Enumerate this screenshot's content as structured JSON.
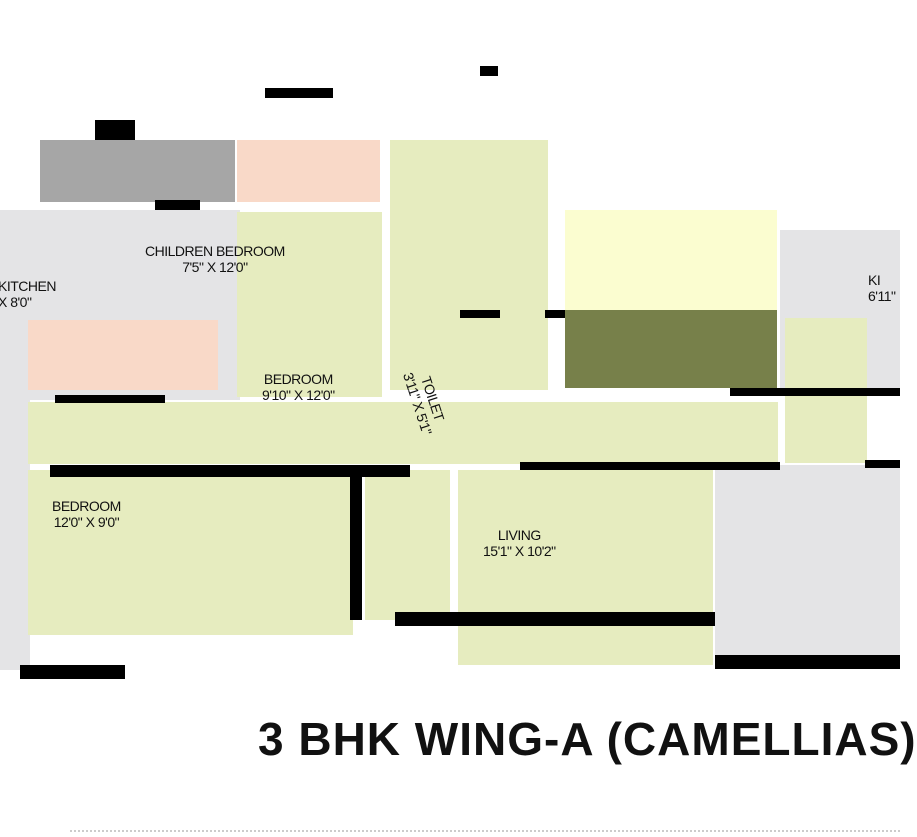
{
  "plan": {
    "title": "3 BHK WING-A (CAMELLIAS)",
    "rooms": [
      {
        "name": "CHILDREN BEDROOM",
        "size": "7'5\" X 12'0\""
      },
      {
        "name": "KITCHEN",
        "size": "X 8'0\""
      },
      {
        "name": "BEDROOM",
        "size": "9'10\" X 12'0\""
      },
      {
        "name": "TOILET",
        "size": "3'11\" X 5'1\""
      },
      {
        "name": "KI",
        "size": "6'11\""
      },
      {
        "name": "BEDROOM",
        "size": "12'0\" X 9'0\""
      },
      {
        "name": "LIVING",
        "size": "15'1\" X 10'2\""
      }
    ]
  },
  "colors": {
    "room_green": "#e6ecbf",
    "room_yellow": "#fbfdd0",
    "room_pink": "#f9d9c8",
    "room_grey": "#e4e4e6",
    "dark_olive": "#77804a",
    "wall": "#000000"
  }
}
